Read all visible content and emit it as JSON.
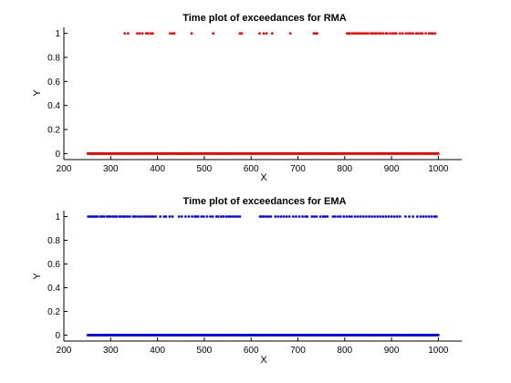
{
  "chart_data": [
    {
      "type": "scatter",
      "title": "Time plot of exceedances for RMA",
      "xlabel": "X",
      "ylabel": "Y",
      "xlim": [
        200,
        1050
      ],
      "ylim": [
        -0.05,
        1.05
      ],
      "xticks": [
        "200",
        "300",
        "400",
        "500",
        "600",
        "700",
        "800",
        "900",
        "1000"
      ],
      "yticks": [
        "0",
        "0.2",
        "0.4",
        "0.6",
        "0.8",
        "1"
      ],
      "color": "#ff0000",
      "grid": false,
      "exceedances": [
        330,
        337,
        357,
        362,
        368,
        376,
        380,
        386,
        390,
        427,
        432,
        436,
        473,
        519,
        576,
        580,
        618,
        627,
        633,
        645,
        684,
        734,
        738,
        741,
        805,
        808,
        811,
        816,
        820,
        824,
        827,
        831,
        835,
        839,
        842,
        846,
        850,
        856,
        860,
        864,
        868,
        873,
        877,
        882,
        888,
        891,
        897,
        902,
        906,
        910,
        918,
        924,
        931,
        936,
        941,
        946,
        953,
        957,
        962,
        966,
        973,
        980,
        984,
        988,
        993
      ],
      "zeros_range": [
        251,
        1000
      ]
    },
    {
      "type": "scatter",
      "title": "Time plot of exceedances for EMA",
      "xlabel": "X",
      "ylabel": "Y",
      "xlim": [
        200,
        1050
      ],
      "ylim": [
        -0.05,
        1.05
      ],
      "xticks": [
        "200",
        "300",
        "400",
        "500",
        "600",
        "700",
        "800",
        "900",
        "1000"
      ],
      "yticks": [
        "0",
        "0.2",
        "0.4",
        "0.6",
        "0.8",
        "1"
      ],
      "color": "#0000ff",
      "grid": false,
      "exceedances": [
        252,
        256,
        260,
        264,
        268,
        272,
        278,
        282,
        286,
        292,
        296,
        300,
        305,
        309,
        313,
        319,
        323,
        328,
        331,
        336,
        341,
        348,
        352,
        357,
        362,
        367,
        372,
        377,
        382,
        387,
        391,
        396,
        406,
        414,
        418,
        426,
        432,
        446,
        452,
        460,
        467,
        474,
        480,
        483,
        487,
        494,
        499,
        506,
        513,
        518,
        526,
        530,
        536,
        541,
        547,
        552,
        556,
        561,
        566,
        571,
        576,
        619,
        623,
        627,
        632,
        637,
        642,
        652,
        658,
        664,
        670,
        676,
        682,
        690,
        696,
        703,
        710,
        716,
        720,
        730,
        735,
        740,
        748,
        754,
        758,
        763,
        775,
        780,
        786,
        791,
        798,
        804,
        810,
        815,
        822,
        828,
        834,
        840,
        846,
        852,
        858,
        864,
        870,
        876,
        882,
        888,
        894,
        900,
        906,
        912,
        918,
        930,
        938,
        946,
        955,
        962,
        968,
        974,
        980,
        986,
        992,
        996
      ],
      "zeros_range": [
        251,
        1000
      ]
    }
  ]
}
